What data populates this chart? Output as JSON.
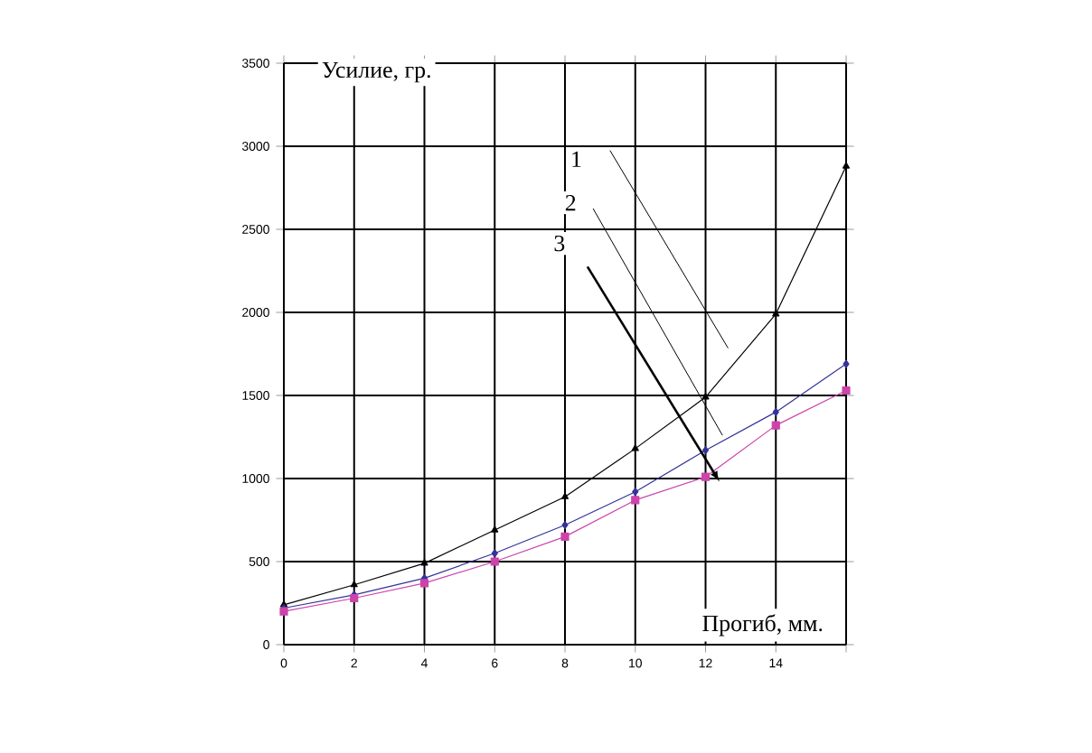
{
  "chart_data": {
    "type": "line",
    "xlabel": "Прогиб, мм.",
    "ylabel": "Усилие, гр.",
    "x": [
      0,
      2,
      4,
      6,
      8,
      10,
      12,
      14,
      16
    ],
    "series": [
      {
        "color": "#000000",
        "marker": "triangle",
        "values": [
          240,
          360,
          490,
          690,
          890,
          1180,
          1490,
          1990,
          2880
        ]
      },
      {
        "color": "#333399",
        "marker": "diamond",
        "values": [
          220,
          300,
          400,
          550,
          720,
          920,
          1170,
          1400,
          1690
        ]
      },
      {
        "color": "#cc44aa",
        "marker": "square",
        "values": [
          200,
          280,
          370,
          500,
          650,
          870,
          1010,
          1320,
          1530
        ]
      }
    ],
    "xlim": [
      0,
      16
    ],
    "ylim": [
      0,
      3500
    ],
    "xticks": [
      0,
      2,
      4,
      6,
      8,
      10,
      12,
      14,
      {
        "value": 16,
        "label": null
      }
    ],
    "yticks": [
      0,
      500,
      1000,
      1500,
      2000,
      2500,
      3000,
      3500
    ],
    "grid": true,
    "annotations": [
      "1",
      "2",
      "3"
    ]
  }
}
